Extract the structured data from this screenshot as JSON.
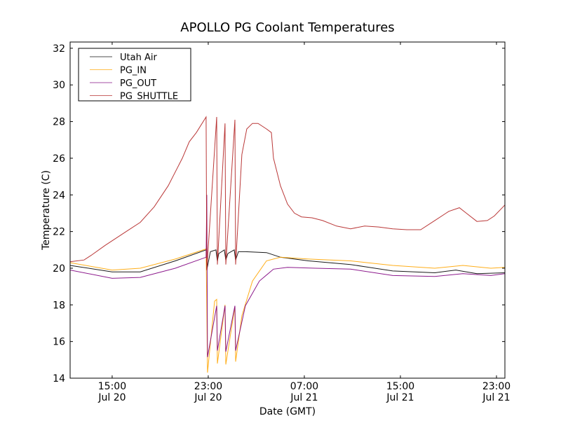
{
  "chart_data": {
    "type": "line",
    "title": "APOLLO PG Coolant Temperatures",
    "xlabel": "Date (GMT)",
    "ylabel": "Temperature (C)",
    "x_unit": "hours since Jul 20 00:00 GMT",
    "xlim": [
      11.5,
      47.7
    ],
    "ylim": [
      14,
      32.34
    ],
    "grid": false,
    "legend_position": "top-left",
    "x_ticks": [
      {
        "value": 15,
        "label_time": "15:00",
        "label_date": "Jul 20"
      },
      {
        "value": 23,
        "label_time": "23:00",
        "label_date": "Jul 20"
      },
      {
        "value": 31,
        "label_time": "07:00",
        "label_date": "Jul 21"
      },
      {
        "value": 39,
        "label_time": "15:00",
        "label_date": "Jul 21"
      },
      {
        "value": 47,
        "label_time": "23:00",
        "label_date": "Jul 21"
      }
    ],
    "y_ticks": [
      {
        "value": 14,
        "label": "14"
      },
      {
        "value": 16,
        "label": "16"
      },
      {
        "value": 18,
        "label": "18"
      },
      {
        "value": 20,
        "label": "20"
      },
      {
        "value": 22,
        "label": "22"
      },
      {
        "value": 24,
        "label": "24"
      },
      {
        "value": 26,
        "label": "26"
      },
      {
        "value": 28,
        "label": "28"
      },
      {
        "value": 30,
        "label": "30"
      },
      {
        "value": 32,
        "label": "32"
      }
    ],
    "series": [
      {
        "name": "Utah Air",
        "color": "#000000",
        "points": [
          [
            11.5,
            20.15
          ],
          [
            15.0,
            19.8
          ],
          [
            17.34,
            19.8
          ],
          [
            20.26,
            20.4
          ],
          [
            22.82,
            21.0
          ],
          [
            22.88,
            19.9
          ],
          [
            23.18,
            20.9
          ],
          [
            23.64,
            21.0
          ],
          [
            23.76,
            20.4
          ],
          [
            23.88,
            20.8
          ],
          [
            24.34,
            21.0
          ],
          [
            24.46,
            20.45
          ],
          [
            24.64,
            20.8
          ],
          [
            25.16,
            21.0
          ],
          [
            25.28,
            20.45
          ],
          [
            25.51,
            20.9
          ],
          [
            26.09,
            20.9
          ],
          [
            27.85,
            20.85
          ],
          [
            29.01,
            20.6
          ],
          [
            31.35,
            20.4
          ],
          [
            34.85,
            20.2
          ],
          [
            38.36,
            19.85
          ],
          [
            41.86,
            19.75
          ],
          [
            43.61,
            19.9
          ],
          [
            45.37,
            19.7
          ],
          [
            47.7,
            19.75
          ]
        ]
      },
      {
        "name": "PG_IN",
        "color": "#FFA500",
        "points": [
          [
            11.5,
            20.3
          ],
          [
            15.0,
            19.9
          ],
          [
            17.34,
            20.0
          ],
          [
            20.26,
            20.5
          ],
          [
            22.82,
            21.05
          ],
          [
            22.94,
            14.3
          ],
          [
            23.53,
            18.2
          ],
          [
            23.7,
            18.3
          ],
          [
            23.76,
            14.8
          ],
          [
            24.4,
            18.0
          ],
          [
            24.46,
            14.75
          ],
          [
            25.22,
            17.9
          ],
          [
            25.28,
            14.9
          ],
          [
            25.8,
            17.4
          ],
          [
            26.68,
            19.3
          ],
          [
            27.85,
            20.4
          ],
          [
            29.01,
            20.6
          ],
          [
            31.35,
            20.5
          ],
          [
            34.85,
            20.4
          ],
          [
            38.36,
            20.15
          ],
          [
            41.86,
            20.0
          ],
          [
            44.2,
            20.15
          ],
          [
            46.53,
            20.0
          ],
          [
            47.7,
            20.05
          ]
        ]
      },
      {
        "name": "PG_OUT",
        "color": "#800080",
        "points": [
          [
            11.5,
            19.9
          ],
          [
            15.0,
            19.45
          ],
          [
            17.34,
            19.5
          ],
          [
            20.26,
            20.0
          ],
          [
            22.82,
            20.6
          ],
          [
            22.88,
            24.0
          ],
          [
            22.94,
            15.15
          ],
          [
            23.7,
            17.95
          ],
          [
            23.76,
            15.5
          ],
          [
            24.4,
            17.95
          ],
          [
            24.46,
            15.45
          ],
          [
            25.22,
            17.95
          ],
          [
            25.28,
            15.5
          ],
          [
            26.09,
            17.95
          ],
          [
            27.26,
            19.3
          ],
          [
            28.43,
            19.95
          ],
          [
            29.6,
            20.05
          ],
          [
            31.93,
            20.0
          ],
          [
            34.85,
            19.95
          ],
          [
            38.36,
            19.6
          ],
          [
            41.86,
            19.55
          ],
          [
            44.2,
            19.7
          ],
          [
            46.53,
            19.6
          ],
          [
            47.7,
            19.7
          ]
        ]
      },
      {
        "name": "PG_SHUTTLE",
        "color": "#B22222",
        "points": [
          [
            11.5,
            20.35
          ],
          [
            12.66,
            20.45
          ],
          [
            13.25,
            20.7
          ],
          [
            14.42,
            21.25
          ],
          [
            16.17,
            22.0
          ],
          [
            17.34,
            22.5
          ],
          [
            18.5,
            23.35
          ],
          [
            19.67,
            24.5
          ],
          [
            20.84,
            26.0
          ],
          [
            21.42,
            26.9
          ],
          [
            22.01,
            27.4
          ],
          [
            22.82,
            28.25
          ],
          [
            22.88,
            19.9
          ],
          [
            23.7,
            28.25
          ],
          [
            23.76,
            20.2
          ],
          [
            24.4,
            27.9
          ],
          [
            24.46,
            20.2
          ],
          [
            25.22,
            28.1
          ],
          [
            25.28,
            20.2
          ],
          [
            25.8,
            26.2
          ],
          [
            26.21,
            27.6
          ],
          [
            26.68,
            27.9
          ],
          [
            27.15,
            27.9
          ],
          [
            27.85,
            27.6
          ],
          [
            28.26,
            27.4
          ],
          [
            28.43,
            26.0
          ],
          [
            29.01,
            24.5
          ],
          [
            29.6,
            23.5
          ],
          [
            30.18,
            23.0
          ],
          [
            30.77,
            22.8
          ],
          [
            31.64,
            22.75
          ],
          [
            32.52,
            22.6
          ],
          [
            33.69,
            22.3
          ],
          [
            34.85,
            22.15
          ],
          [
            36.02,
            22.3
          ],
          [
            37.19,
            22.25
          ],
          [
            38.36,
            22.15
          ],
          [
            39.53,
            22.1
          ],
          [
            40.69,
            22.1
          ],
          [
            41.86,
            22.6
          ],
          [
            43.03,
            23.1
          ],
          [
            43.91,
            23.3
          ],
          [
            44.49,
            23.0
          ],
          [
            45.37,
            22.55
          ],
          [
            46.24,
            22.6
          ],
          [
            46.82,
            22.85
          ],
          [
            47.7,
            23.45
          ]
        ]
      }
    ]
  }
}
